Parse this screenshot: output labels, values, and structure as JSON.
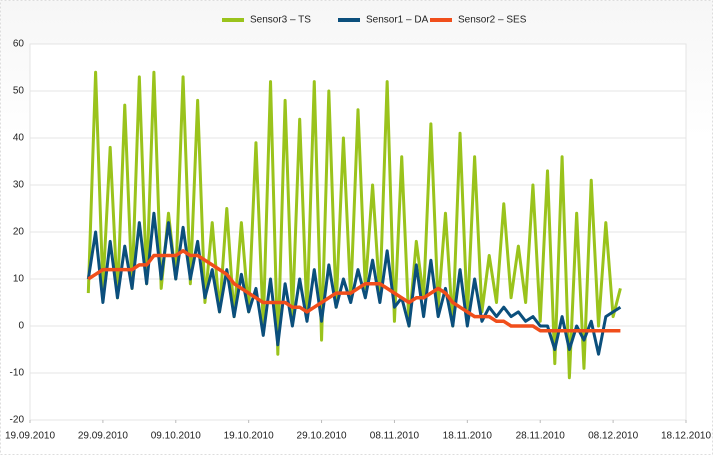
{
  "chart_data": {
    "type": "line",
    "x": [
      "2010-09-27",
      "2010-09-28",
      "2010-09-29",
      "2010-09-30",
      "2010-10-01",
      "2010-10-02",
      "2010-10-03",
      "2010-10-04",
      "2010-10-05",
      "2010-10-06",
      "2010-10-07",
      "2010-10-08",
      "2010-10-09",
      "2010-10-10",
      "2010-10-11",
      "2010-10-12",
      "2010-10-13",
      "2010-10-14",
      "2010-10-15",
      "2010-10-16",
      "2010-10-17",
      "2010-10-18",
      "2010-10-19",
      "2010-10-20",
      "2010-10-21",
      "2010-10-22",
      "2010-10-23",
      "2010-10-24",
      "2010-10-25",
      "2010-10-26",
      "2010-10-27",
      "2010-10-28",
      "2010-10-29",
      "2010-10-30",
      "2010-10-31",
      "2010-11-01",
      "2010-11-02",
      "2010-11-03",
      "2010-11-04",
      "2010-11-05",
      "2010-11-06",
      "2010-11-07",
      "2010-11-08",
      "2010-11-09",
      "2010-11-10",
      "2010-11-11",
      "2010-11-12",
      "2010-11-13",
      "2010-11-14",
      "2010-11-15",
      "2010-11-16",
      "2010-11-17",
      "2010-11-18",
      "2010-11-19",
      "2010-11-20",
      "2010-11-21",
      "2010-11-22",
      "2010-11-23",
      "2010-11-24",
      "2010-11-25",
      "2010-11-26",
      "2010-11-27",
      "2010-11-28",
      "2010-11-29",
      "2010-11-30",
      "2010-12-01",
      "2010-12-02",
      "2010-12-03",
      "2010-12-04",
      "2010-12-05",
      "2010-12-06",
      "2010-12-07",
      "2010-12-08",
      "2010-12-09"
    ],
    "series": [
      {
        "name": "Sensor3 – TS",
        "color": "#9ac31c",
        "values": [
          7,
          54,
          8,
          38,
          6,
          47,
          8,
          53,
          9,
          54,
          8,
          24,
          10,
          53,
          9,
          48,
          5,
          22,
          3,
          25,
          2,
          22,
          3,
          39,
          0,
          52,
          -6,
          48,
          2,
          44,
          2,
          52,
          -3,
          50,
          4,
          40,
          6,
          46,
          8,
          30,
          6,
          52,
          1,
          36,
          0,
          18,
          6,
          43,
          4,
          24,
          0,
          41,
          2,
          36,
          3,
          15,
          5,
          26,
          6,
          17,
          5,
          30,
          1,
          33,
          -8,
          36,
          -11,
          24,
          -9,
          31,
          0,
          22,
          2,
          8
        ]
      },
      {
        "name": "Sensor1 – DA",
        "color": "#0b4f7c",
        "values": [
          10,
          20,
          5,
          18,
          6,
          17,
          8,
          22,
          9,
          24,
          10,
          22,
          10,
          21,
          10,
          18,
          6,
          12,
          3,
          12,
          2,
          11,
          3,
          8,
          -2,
          10,
          -4,
          9,
          0,
          10,
          1,
          12,
          1,
          13,
          4,
          10,
          5,
          12,
          6,
          14,
          5,
          16,
          4,
          6,
          0,
          13,
          2,
          14,
          2,
          8,
          0,
          12,
          0,
          10,
          1,
          4,
          2,
          4,
          2,
          3,
          1,
          2,
          0,
          0,
          -5,
          2,
          -5,
          0,
          -3,
          1,
          -6,
          2,
          3,
          4
        ]
      },
      {
        "name": "Sensor2 – SES",
        "color": "#f04e1b",
        "values": [
          10,
          11,
          12,
          12,
          12,
          12,
          12,
          13,
          13,
          15,
          15,
          15,
          15,
          16,
          15,
          15,
          14,
          13,
          12,
          11,
          9,
          8,
          7,
          6,
          5,
          5,
          5,
          5,
          4,
          4,
          3,
          4,
          5,
          6,
          7,
          7,
          7,
          8,
          9,
          9,
          9,
          8,
          7,
          6,
          5,
          6,
          6,
          7,
          8,
          7,
          5,
          4,
          3,
          2,
          2,
          2,
          1,
          1,
          0,
          0,
          0,
          0,
          -1,
          -1,
          -1,
          -1,
          -1,
          -1,
          -1,
          -1,
          -1,
          -1,
          -1,
          -1
        ]
      }
    ],
    "xlim": [
      "2010-09-19",
      "2010-12-18"
    ],
    "xticks": [
      {
        "value": "2010-09-19",
        "label": "19.09.2010"
      },
      {
        "value": "2010-09-29",
        "label": "29.09.2010"
      },
      {
        "value": "2010-10-09",
        "label": "09.10.2010"
      },
      {
        "value": "2010-10-19",
        "label": "19.10.2010"
      },
      {
        "value": "2010-10-29",
        "label": "29.10.2010"
      },
      {
        "value": "2010-11-08",
        "label": "08.11.2010"
      },
      {
        "value": "2010-11-18",
        "label": "18.11.2010"
      },
      {
        "value": "2010-11-28",
        "label": "28.11.2010"
      },
      {
        "value": "2010-12-08",
        "label": "08.12.2010"
      },
      {
        "value": "2010-12-18",
        "label": "18.12.2010"
      }
    ],
    "ylim": [
      -20,
      60
    ],
    "yticks": [
      -20,
      -10,
      0,
      10,
      20,
      30,
      40,
      50,
      60
    ],
    "grid": true,
    "legend": "top"
  }
}
